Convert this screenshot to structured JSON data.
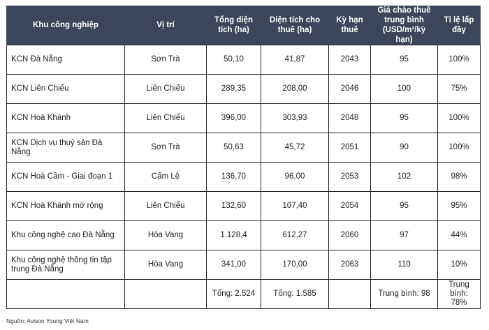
{
  "headers": [
    "Khu công nghiệp",
    "Vị trí",
    "Tổng diện tích (ha)",
    "Diện tích cho thuê (ha)",
    "Kỳ hạn thuê",
    "Giá chào thuê trung bình (USD/m²/kỳ hạn)",
    "Tỉ lệ lấp đầy"
  ],
  "rows": [
    [
      "KCN Đà Nẵng",
      "Sơn Trà",
      "50,10",
      "41,87",
      "2043",
      "95",
      "100%"
    ],
    [
      "KCN Liên Chiểu",
      "Liên Chiểu",
      "289,35",
      "208,00",
      "2046",
      "100",
      "75%"
    ],
    [
      "KCN Hoà Khánh",
      "Liên Chiểu",
      "396,00",
      "303,93",
      "2048",
      "95",
      "100%"
    ],
    [
      "KCN Dịch vụ thuỷ sản Đà Nẵng",
      "Sơn Trà",
      "50,63",
      "45,72",
      "2051",
      "90",
      "100%"
    ],
    [
      "KCN Hoà Cầm - Giai đoạn 1",
      "Cẩm Lệ",
      "136,70",
      "96,00",
      "2053",
      "102",
      "98%"
    ],
    [
      "KCN Hoà Khánh mở rộng",
      "Liên Chiểu",
      "132,60",
      "107,40",
      "2054",
      "95",
      "95%"
    ],
    [
      "Khu công nghệ cao Đà Nẵng",
      "Hòa Vang",
      "1.128,4",
      "612,27",
      "2060",
      "97",
      "44%"
    ],
    [
      "Khu công nghệ thông tin tập trung Đà Nẵng",
      "Hòa Vang",
      "341,00",
      "170,00",
      "2063",
      "110",
      "10%"
    ]
  ],
  "totals": [
    "",
    "",
    "Tổng: 2.524",
    "Tổng: 1.585",
    "",
    "Trung bình: 98",
    "Trung bình: 78%"
  ],
  "source": "Nguồn: Avison Young Việt Nam"
}
